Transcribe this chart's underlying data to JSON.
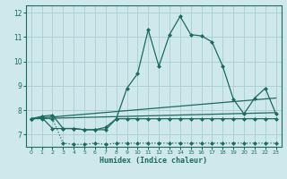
{
  "xlabel": "Humidex (Indice chaleur)",
  "xlim": [
    -0.5,
    23.5
  ],
  "ylim": [
    6.5,
    12.3
  ],
  "yticks": [
    7,
    8,
    9,
    10,
    11,
    12
  ],
  "xticks": [
    0,
    1,
    2,
    3,
    4,
    5,
    6,
    7,
    8,
    9,
    10,
    11,
    12,
    13,
    14,
    15,
    16,
    17,
    18,
    19,
    20,
    21,
    22,
    23
  ],
  "bg_color": "#cfe8ec",
  "grid_color": "#a8cdd4",
  "line_color": "#1a6b60",
  "lines": [
    {
      "x": [
        0,
        1,
        2,
        3,
        4,
        5,
        6,
        7,
        8,
        9,
        10,
        11,
        12,
        13,
        14,
        15,
        16,
        17,
        18,
        19,
        20,
        21,
        22,
        23
      ],
      "y": [
        7.65,
        7.65,
        7.65,
        6.65,
        6.6,
        6.6,
        6.65,
        6.6,
        6.65,
        6.65,
        6.65,
        6.65,
        6.65,
        6.65,
        6.65,
        6.65,
        6.65,
        6.65,
        6.65,
        6.65,
        6.65,
        6.65,
        6.65,
        6.65
      ],
      "marker": "D",
      "markersize": 2.0,
      "linewidth": 0.9,
      "linestyle": ":"
    },
    {
      "x": [
        0,
        1,
        2,
        3,
        4,
        5,
        6,
        7,
        8,
        9,
        10,
        11,
        12,
        13,
        14,
        15,
        16,
        17,
        18,
        19,
        20,
        21,
        22,
        23
      ],
      "y": [
        7.65,
        7.7,
        7.25,
        7.25,
        7.25,
        7.2,
        7.2,
        7.3,
        7.65,
        7.65,
        7.65,
        7.65,
        7.65,
        7.65,
        7.65,
        7.65,
        7.65,
        7.65,
        7.65,
        7.65,
        7.65,
        7.65,
        7.65,
        7.65
      ],
      "marker": "D",
      "markersize": 2.0,
      "linewidth": 0.9,
      "linestyle": "-"
    },
    {
      "x": [
        0,
        23
      ],
      "y": [
        7.65,
        7.9
      ],
      "marker": null,
      "markersize": 0,
      "linewidth": 0.9,
      "linestyle": "-"
    },
    {
      "x": [
        0,
        23
      ],
      "y": [
        7.65,
        8.5
      ],
      "marker": null,
      "markersize": 0,
      "linewidth": 0.9,
      "linestyle": "-"
    },
    {
      "x": [
        0,
        1,
        2,
        3,
        4,
        5,
        6,
        7,
        8,
        9,
        10,
        11,
        12,
        13,
        14,
        15,
        16,
        17,
        18,
        19,
        20,
        21,
        22,
        23
      ],
      "y": [
        7.65,
        7.75,
        7.8,
        7.25,
        7.25,
        7.2,
        7.2,
        7.2,
        7.65,
        8.9,
        9.5,
        11.3,
        9.8,
        11.1,
        11.85,
        11.1,
        11.05,
        10.8,
        9.8,
        8.45,
        7.85,
        8.5,
        8.9,
        7.85
      ],
      "marker": "D",
      "markersize": 2.0,
      "linewidth": 0.9,
      "linestyle": "-"
    }
  ]
}
